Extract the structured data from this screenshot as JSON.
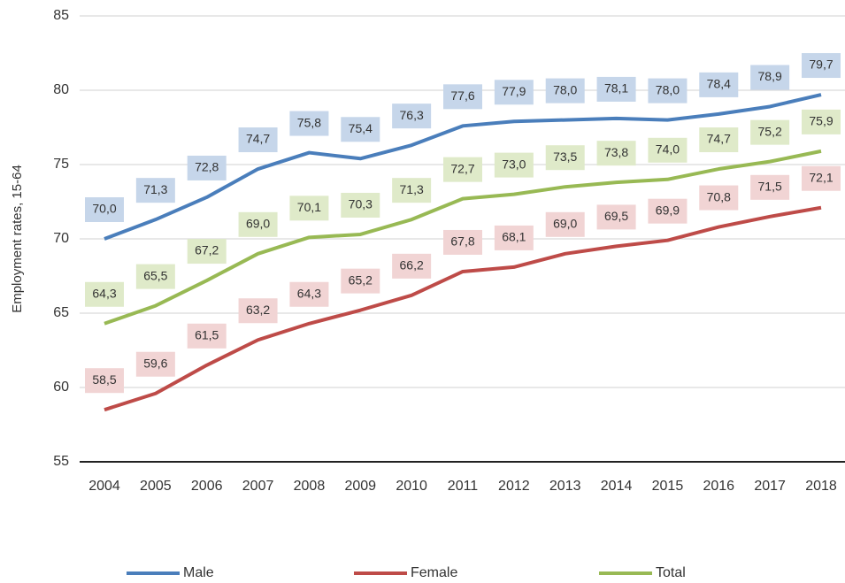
{
  "chart_data": {
    "type": "line",
    "y_label": "Employment rates, 15-64",
    "categories": [
      "2004",
      "2005",
      "2006",
      "2007",
      "2008",
      "2009",
      "2010",
      "2011",
      "2012",
      "2013",
      "2014",
      "2015",
      "2016",
      "2017",
      "2018"
    ],
    "series": [
      {
        "name": "Male",
        "color": "#4a7ebb",
        "label_bg": "#c6d6ea",
        "values": [
          70.0,
          71.3,
          72.8,
          74.7,
          75.8,
          75.4,
          76.3,
          77.6,
          77.9,
          78.0,
          78.1,
          78.0,
          78.4,
          78.9,
          79.7
        ],
        "value_labels": [
          "70,0",
          "71,3",
          "72,8",
          "74,7",
          "75,8",
          "75,4",
          "76,3",
          "77,6",
          "77,9",
          "78,0",
          "78,1",
          "78,0",
          "78,4",
          "78,9",
          "79,7"
        ]
      },
      {
        "name": "Female",
        "color": "#be4b48",
        "label_bg": "#f1d4d4",
        "values": [
          58.5,
          59.6,
          61.5,
          63.2,
          64.3,
          65.2,
          66.2,
          67.8,
          68.1,
          69.0,
          69.5,
          69.9,
          70.8,
          71.5,
          72.1
        ],
        "value_labels": [
          "58,5",
          "59,6",
          "61,5",
          "63,2",
          "64,3",
          "65,2",
          "66,2",
          "67,8",
          "68,1",
          "69,0",
          "69,5",
          "69,9",
          "70,8",
          "71,5",
          "72,1"
        ]
      },
      {
        "name": "Total",
        "color": "#98b954",
        "label_bg": "#dfeac9",
        "values": [
          64.3,
          65.5,
          67.2,
          69.0,
          70.1,
          70.3,
          71.3,
          72.7,
          73.0,
          73.5,
          73.8,
          74.0,
          74.7,
          75.2,
          75.9
        ],
        "value_labels": [
          "64,3",
          "65,5",
          "67,2",
          "69,0",
          "70,1",
          "70,3",
          "71,3",
          "72,7",
          "73,0",
          "73,5",
          "73,8",
          "74,0",
          "74,7",
          "75,2",
          "75,9"
        ]
      }
    ],
    "ylim": [
      55,
      85
    ],
    "yticks": [
      55,
      60,
      65,
      70,
      75,
      80,
      85
    ],
    "grid": true,
    "legend": "bottom"
  }
}
